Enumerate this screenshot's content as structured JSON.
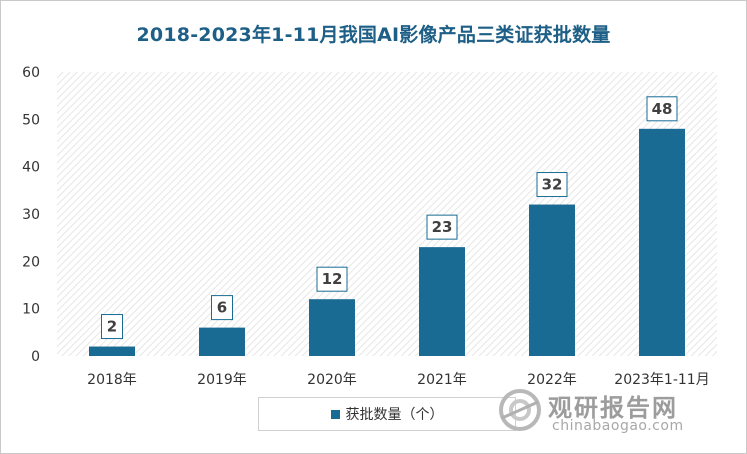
{
  "chart_data": {
    "type": "bar",
    "title": "2018-2023年1-11月我国AI影像产品三类证获批数量",
    "categories": [
      "2018年",
      "2019年",
      "2020年",
      "2021年",
      "2022年",
      "2023年1-11月"
    ],
    "series": [
      {
        "name": "获批数量（个）",
        "values": [
          2,
          6,
          12,
          23,
          32,
          48
        ],
        "color": "#1a6b93"
      }
    ],
    "ylim": [
      0,
      60
    ],
    "yticks": [
      0,
      10,
      20,
      30,
      40,
      50,
      60
    ],
    "xlabel": "",
    "ylabel": "",
    "data_labels": true,
    "legend_position": "bottom",
    "background": "hatched",
    "grid": false
  },
  "watermark": {
    "text_cn": "观研报告网",
    "text_en": "chinabaogao.com"
  }
}
